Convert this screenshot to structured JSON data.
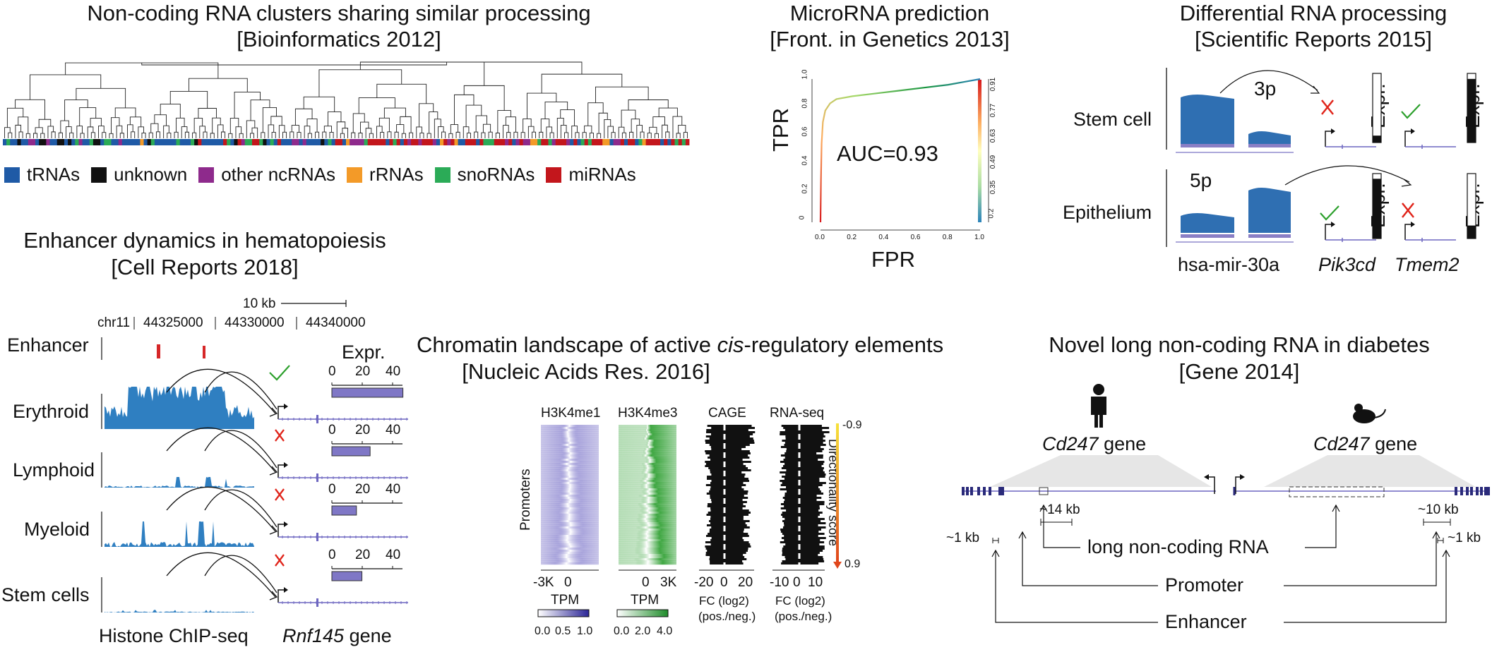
{
  "panels": {
    "ncrna": {
      "title": "Non-coding RNA clusters sharing similar processing",
      "citation": "[Bioinformatics 2012]",
      "legend": [
        {
          "label": "tRNAs",
          "color": "#1f5aa6"
        },
        {
          "label": "unknown",
          "color": "#111111"
        },
        {
          "label": "other ncRNAs",
          "color": "#8e2a8c"
        },
        {
          "label": "rRNAs",
          "color": "#f39a28"
        },
        {
          "label": "snoRNAs",
          "color": "#2bab57"
        },
        {
          "label": "miRNAs",
          "color": "#c3161c"
        }
      ]
    },
    "microrna": {
      "title": "MicroRNA prediction",
      "citation": "[Front. in Genetics 2013]",
      "ylabel": "TPR",
      "xlabel": "FPR",
      "auc": "AUC=0.93",
      "x_ticks": [
        "0.0",
        "0.2",
        "0.4",
        "0.6",
        "0.8",
        "1.0"
      ],
      "y_ticks": [
        "0",
        "0.2",
        "0.4",
        "0.6",
        "0.8",
        "1.0"
      ],
      "right_ticks": [
        "0.91",
        "0.77",
        "0.63",
        "0.49",
        "0.35",
        "0.2"
      ]
    },
    "differential": {
      "title": "Differential RNA processing",
      "citation": "[Scientific Reports 2015]",
      "rows": [
        "Stem cell",
        "Epithelium"
      ],
      "arm5": "5p",
      "arm3": "3p",
      "expr": "Expr.",
      "mirna": "hsa-mir-30a",
      "gene1": "Pik3cd",
      "gene2": "Tmem2"
    },
    "enhancer": {
      "title": "Enhancer dynamics in hematopoiesis",
      "citation": "[Cell Reports 2018]",
      "scale": "10 kb",
      "chrom": "chr11",
      "coords": [
        "44325000",
        "44330000",
        "44340000"
      ],
      "enhancer_label": "Enhancer",
      "expr_label": "Expr.",
      "rows": [
        "Erythroid",
        "Lymphoid",
        "Myeloid",
        "Stem cells"
      ],
      "axis_ticks": [
        "0",
        "20",
        "40"
      ],
      "expr_values": [
        52,
        28,
        18,
        22
      ],
      "bottom_left": "Histone ChIP-seq",
      "gene_name": "Rnf145",
      "gene_suffix": "gene"
    },
    "chromatin": {
      "title_pre": "Chromatin landscape of active ",
      "title_ital": "cis",
      "title_post": "-regulatory elements",
      "citation": "[Nucleic Acids Res. 2016]",
      "columns": [
        "H3K4me1",
        "H3K4me3",
        "CAGE",
        "RNA-seq"
      ],
      "ylabel": "Promoters",
      "ticks_heat": [
        "-3K",
        "0",
        "3K"
      ],
      "ticks_cage": [
        "-20",
        "0",
        "20"
      ],
      "ticks_rna": [
        "-10",
        "0",
        "10"
      ],
      "tpm": "TPM",
      "tpm1_ticks": [
        "0.0",
        "0.5",
        "1.0"
      ],
      "tpm2_ticks": [
        "0.0",
        "2.0",
        "4.0"
      ],
      "fc_label": "FC (log2)",
      "fc_sub": "(pos./neg.)",
      "dir_label": "Directionality score",
      "dir_top": "-0.9",
      "dir_bottom": "0.9"
    },
    "lncrna": {
      "title": "Novel long non-coding RNA in diabetes",
      "citation": "[Gene 2014]",
      "gene_ital": "Cd247",
      "gene_suffix": " gene",
      "kb14": "~14 kb",
      "kb10": "~10 kb",
      "kb1": "~1 kb",
      "lnc": "long non-coding RNA",
      "promoter": "Promoter",
      "enhancer": "Enhancer"
    }
  }
}
